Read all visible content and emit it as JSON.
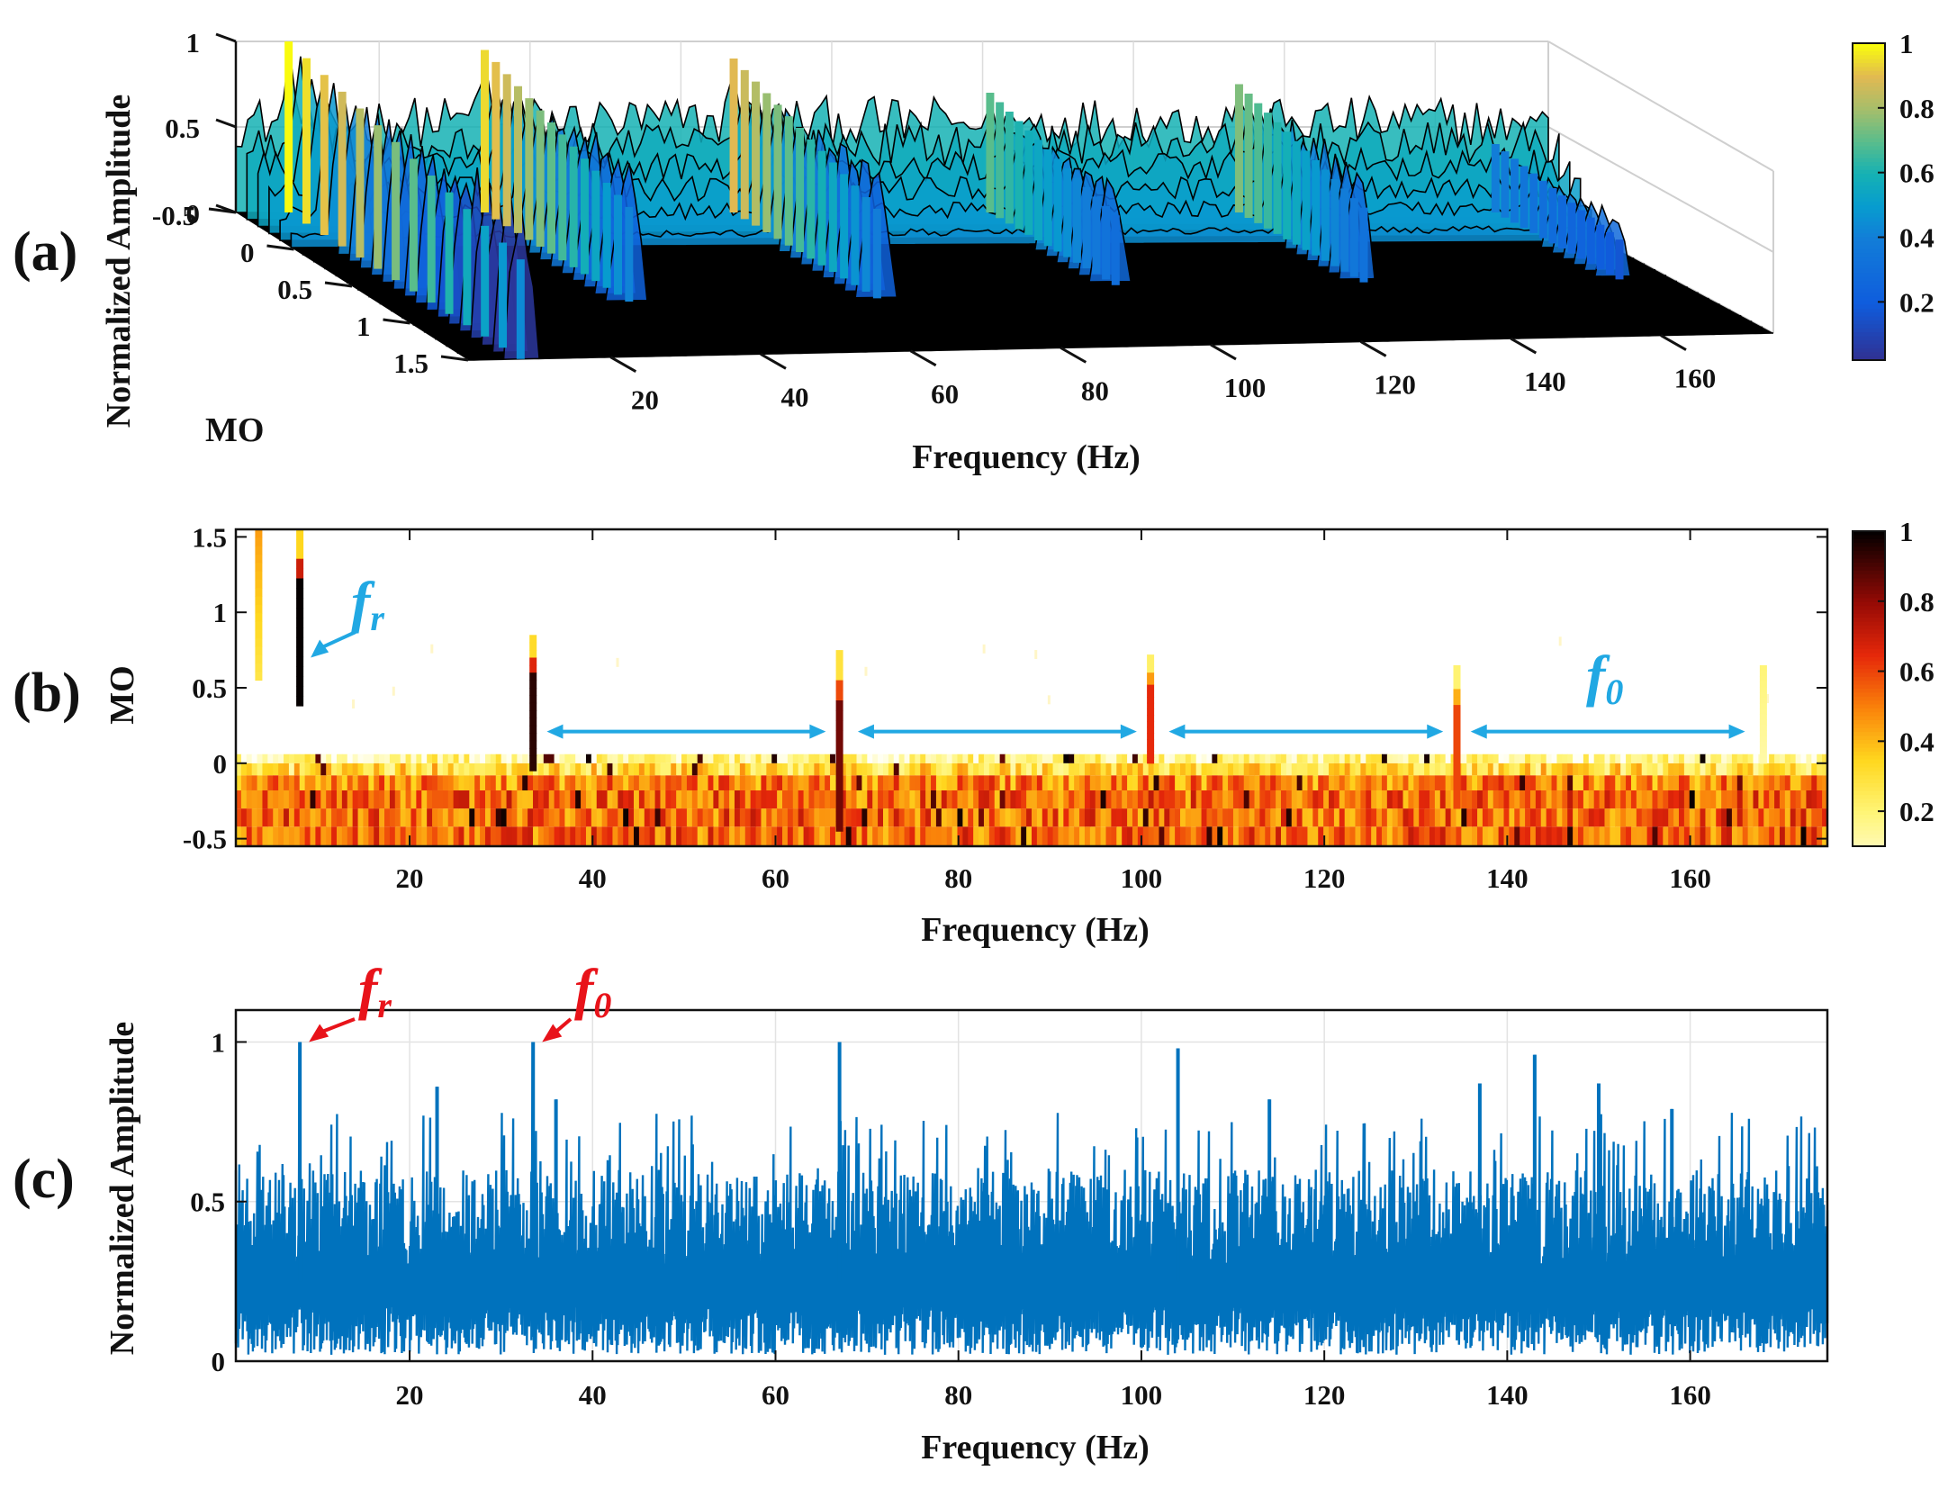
{
  "panels": {
    "a": {
      "label": "(a)"
    },
    "b": {
      "label": "(b)"
    },
    "c": {
      "label": "(c)"
    }
  },
  "chart_data": [
    {
      "panel": "(a)",
      "type": "surface3d",
      "xlabel": "Frequency (Hz)",
      "ylabel": "MO",
      "zlabel": "Normalized Amplitude",
      "x_ticks": [
        20,
        40,
        60,
        80,
        100,
        120,
        140,
        160
      ],
      "y_ticks": [
        -0.5,
        0,
        0.5,
        1,
        1.5
      ],
      "z_ticks": [
        0,
        0.5,
        1
      ],
      "xlim": [
        1,
        175
      ],
      "ylim": [
        -0.5,
        1.5
      ],
      "zlim": [
        0,
        1
      ],
      "colormap": "parula",
      "colorbar_ticks": [
        0.2,
        0.4,
        0.6,
        0.8,
        1
      ],
      "colorbar_labels": [
        "0.2",
        "0.4",
        "0.6",
        "0.8",
        "1"
      ],
      "ridges": [
        {
          "frequency": 8,
          "mo_max": 1.5,
          "peak": 1.0
        },
        {
          "frequency": 34,
          "mo_max": 0.75,
          "peak": 0.95
        },
        {
          "frequency": 67,
          "mo_max": 0.75,
          "peak": 0.9
        },
        {
          "frequency": 101,
          "mo_max": 0.6,
          "peak": 0.7
        },
        {
          "frequency": 134,
          "mo_max": 0.6,
          "peak": 0.75
        },
        {
          "frequency": 168,
          "mo_max": 0.6,
          "peak": 0.4
        }
      ]
    },
    {
      "panel": "(b)",
      "type": "heatmap",
      "xlabel": "Frequency (Hz)",
      "ylabel": "MO",
      "x_ticks": [
        20,
        40,
        60,
        80,
        100,
        120,
        140,
        160
      ],
      "y_ticks": [
        -0.5,
        0,
        0.5,
        1,
        1.5
      ],
      "y_tick_labels": [
        "-0.5",
        "0",
        "0.5",
        "1",
        "1.5"
      ],
      "xlim": [
        1,
        175
      ],
      "ylim": [
        -0.55,
        1.55
      ],
      "colormap": "hot (reversed)",
      "colorbar_ticks": [
        0.2,
        0.4,
        0.6,
        0.8,
        1
      ],
      "colorbar_labels": [
        "0.2",
        "0.4",
        "0.6",
        "0.8",
        "1"
      ],
      "ridges": [
        {
          "frequency": 3.5,
          "mo_top": 1.55,
          "mo_bottom": 0.55,
          "intensity": 0.45
        },
        {
          "frequency": 8,
          "mo_top": 1.55,
          "mo_bottom": 0.38,
          "intensity": 1.0
        },
        {
          "frequency": 33.5,
          "mo_top": 0.85,
          "mo_bottom": -0.05,
          "intensity": 0.95
        },
        {
          "frequency": 67,
          "mo_top": 0.75,
          "mo_bottom": -0.45,
          "intensity": 0.85
        },
        {
          "frequency": 101,
          "mo_top": 0.72,
          "mo_bottom": -0.0,
          "intensity": 0.65
        },
        {
          "frequency": 134.5,
          "mo_top": 0.65,
          "mo_bottom": -0.3,
          "intensity": 0.6
        },
        {
          "frequency": 168,
          "mo_top": 0.65,
          "mo_bottom": 0.0,
          "intensity": 0.2
        }
      ],
      "arrows": [
        {
          "from": 35,
          "to": 65.5
        },
        {
          "from": 69,
          "to": 99.5
        },
        {
          "from": 103,
          "to": 133
        },
        {
          "from": 136,
          "to": 166
        }
      ],
      "annotations": [
        {
          "name": "fr",
          "text": "f",
          "sub": "r",
          "color": "#21a8e3",
          "points_to": {
            "frequency": 8,
            "mo": 0.7
          }
        },
        {
          "name": "f0",
          "text": "f",
          "sub": "0",
          "color": "#21a8e3",
          "points_to": null
        }
      ]
    },
    {
      "panel": "(c)",
      "type": "line",
      "xlabel": "Frequency (Hz)",
      "ylabel": "Normalized Amplitude",
      "x_ticks": [
        20,
        40,
        60,
        80,
        100,
        120,
        140,
        160
      ],
      "y_ticks": [
        0,
        0.5,
        1
      ],
      "y_tick_labels": [
        "0",
        "0.5",
        "1"
      ],
      "xlim": [
        1,
        175
      ],
      "ylim": [
        0,
        1.1
      ],
      "grid": true,
      "series_color": "#0072bd",
      "peaks": [
        {
          "frequency": 8,
          "value": 1.0
        },
        {
          "frequency": 33.5,
          "value": 1.0
        },
        {
          "frequency": 67,
          "value": 1.0
        },
        {
          "frequency": 104,
          "value": 0.98
        },
        {
          "frequency": 143,
          "value": 0.96
        },
        {
          "frequency": 137,
          "value": 0.87
        },
        {
          "frequency": 150,
          "value": 0.87
        },
        {
          "frequency": 23,
          "value": 0.86
        },
        {
          "frequency": 36,
          "value": 0.82
        },
        {
          "frequency": 114,
          "value": 0.82
        },
        {
          "frequency": 158,
          "value": 0.79
        }
      ],
      "noise_floor": {
        "min": 0.02,
        "typical_max": 0.62
      },
      "annotations": [
        {
          "name": "fr",
          "text": "f",
          "sub": "r",
          "color": "#e8131a",
          "points_to": {
            "frequency": 8,
            "value": 1.0
          }
        },
        {
          "name": "f0",
          "text": "f",
          "sub": "0",
          "color": "#e8131a",
          "points_to": {
            "frequency": 33.5,
            "value": 1.0
          }
        }
      ]
    }
  ]
}
